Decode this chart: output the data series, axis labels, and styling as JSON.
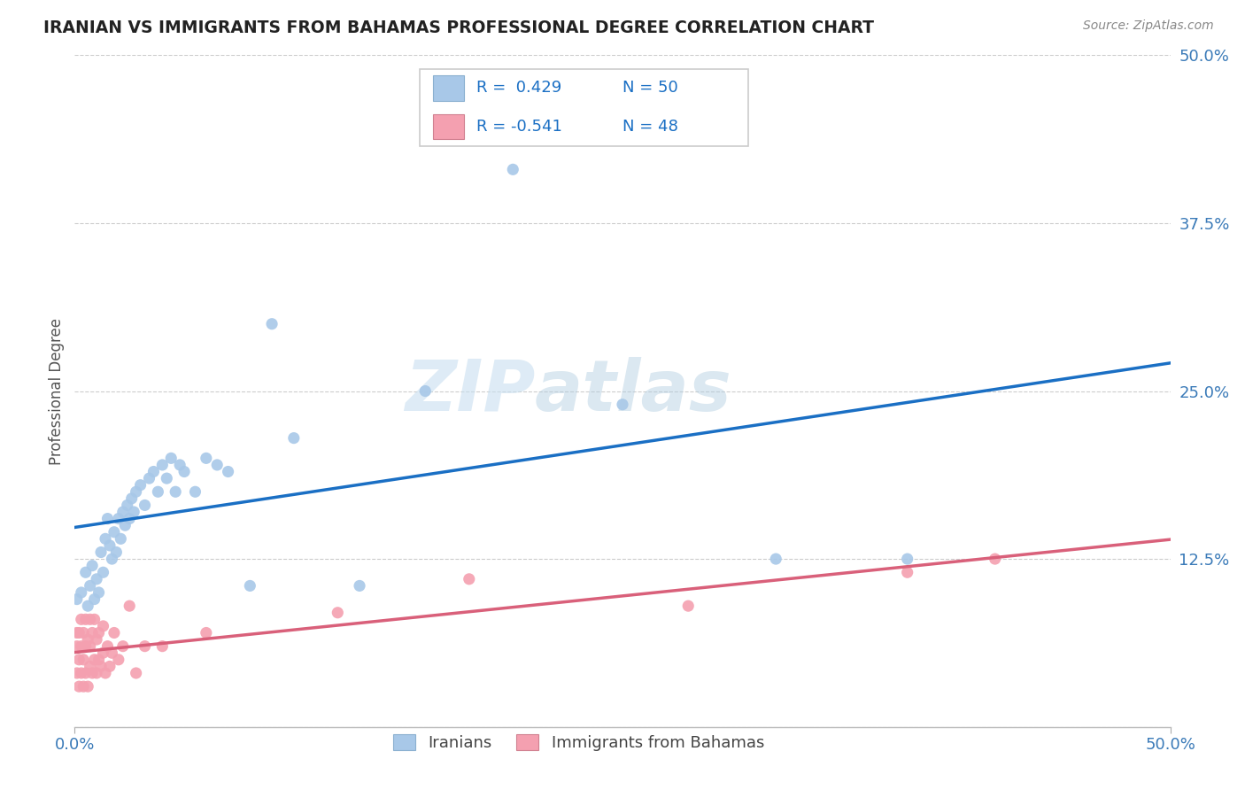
{
  "title": "IRANIAN VS IMMIGRANTS FROM BAHAMAS PROFESSIONAL DEGREE CORRELATION CHART",
  "source": "Source: ZipAtlas.com",
  "ylabel": "Professional Degree",
  "xlim": [
    0.0,
    0.5
  ],
  "ylim": [
    0.0,
    0.5
  ],
  "yticks": [
    0.0,
    0.125,
    0.25,
    0.375,
    0.5
  ],
  "ytick_labels": [
    "",
    "12.5%",
    "25.0%",
    "37.5%",
    "50.0%"
  ],
  "watermark_zip": "ZIP",
  "watermark_atlas": "atlas",
  "legend_R1": "R =  0.429",
  "legend_N1": "N = 50",
  "legend_R2": "R = -0.541",
  "legend_N2": "N = 48",
  "color_iranian": "#a8c8e8",
  "color_bahamas": "#f4a0b0",
  "color_line_iranian": "#1a6fc4",
  "color_line_bahamas": "#d9607a",
  "background_color": "#ffffff",
  "grid_color": "#cccccc",
  "iranians_x": [
    0.001,
    0.003,
    0.005,
    0.006,
    0.007,
    0.008,
    0.009,
    0.01,
    0.011,
    0.012,
    0.013,
    0.014,
    0.015,
    0.016,
    0.017,
    0.018,
    0.019,
    0.02,
    0.021,
    0.022,
    0.023,
    0.024,
    0.025,
    0.026,
    0.027,
    0.028,
    0.03,
    0.032,
    0.034,
    0.036,
    0.038,
    0.04,
    0.042,
    0.044,
    0.046,
    0.048,
    0.05,
    0.055,
    0.06,
    0.065,
    0.07,
    0.08,
    0.09,
    0.1,
    0.13,
    0.16,
    0.2,
    0.25,
    0.32,
    0.38
  ],
  "iranians_y": [
    0.095,
    0.1,
    0.115,
    0.09,
    0.105,
    0.12,
    0.095,
    0.11,
    0.1,
    0.13,
    0.115,
    0.14,
    0.155,
    0.135,
    0.125,
    0.145,
    0.13,
    0.155,
    0.14,
    0.16,
    0.15,
    0.165,
    0.155,
    0.17,
    0.16,
    0.175,
    0.18,
    0.165,
    0.185,
    0.19,
    0.175,
    0.195,
    0.185,
    0.2,
    0.175,
    0.195,
    0.19,
    0.175,
    0.2,
    0.195,
    0.19,
    0.105,
    0.3,
    0.215,
    0.105,
    0.25,
    0.415,
    0.24,
    0.125,
    0.125
  ],
  "bahamas_x": [
    0.001,
    0.001,
    0.001,
    0.002,
    0.002,
    0.002,
    0.003,
    0.003,
    0.003,
    0.004,
    0.004,
    0.004,
    0.005,
    0.005,
    0.005,
    0.006,
    0.006,
    0.007,
    0.007,
    0.007,
    0.008,
    0.008,
    0.009,
    0.009,
    0.01,
    0.01,
    0.011,
    0.011,
    0.012,
    0.013,
    0.013,
    0.014,
    0.015,
    0.016,
    0.017,
    0.018,
    0.02,
    0.022,
    0.025,
    0.028,
    0.032,
    0.04,
    0.06,
    0.12,
    0.18,
    0.28,
    0.38,
    0.42
  ],
  "bahamas_y": [
    0.04,
    0.06,
    0.07,
    0.03,
    0.05,
    0.07,
    0.04,
    0.06,
    0.08,
    0.03,
    0.05,
    0.07,
    0.04,
    0.06,
    0.08,
    0.03,
    0.065,
    0.045,
    0.06,
    0.08,
    0.04,
    0.07,
    0.05,
    0.08,
    0.04,
    0.065,
    0.05,
    0.07,
    0.045,
    0.055,
    0.075,
    0.04,
    0.06,
    0.045,
    0.055,
    0.07,
    0.05,
    0.06,
    0.09,
    0.04,
    0.06,
    0.06,
    0.07,
    0.085,
    0.11,
    0.09,
    0.115,
    0.125
  ]
}
